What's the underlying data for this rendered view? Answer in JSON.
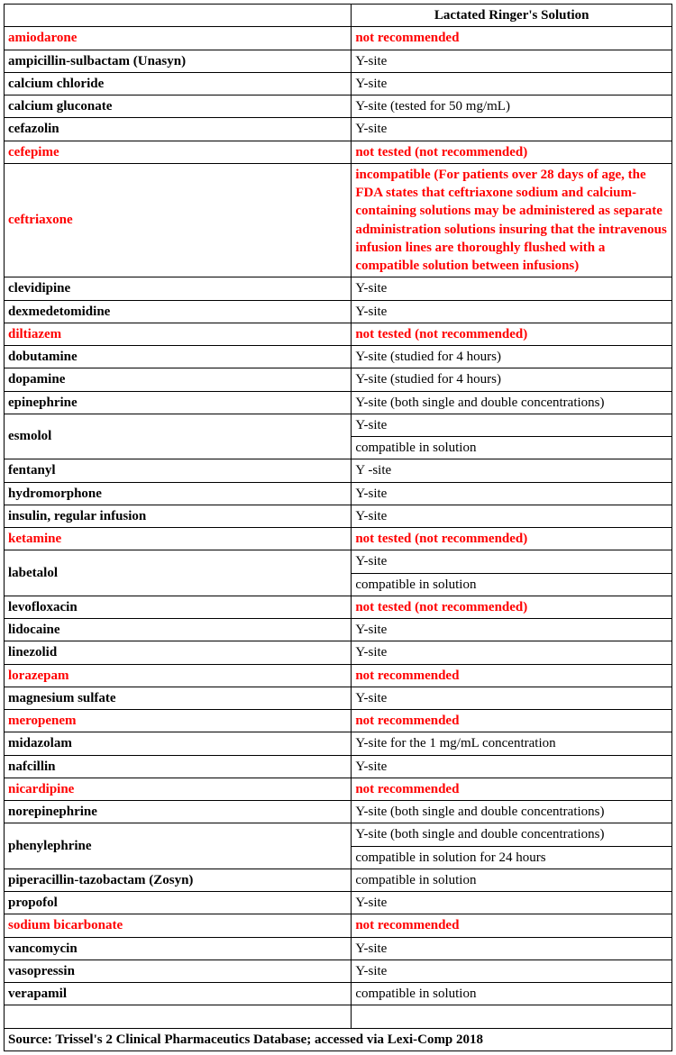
{
  "header": {
    "left": "",
    "right": "Lactated Ringer's Solution"
  },
  "rows": [
    {
      "drug": "amiodarone",
      "red": true,
      "notes": [
        "not recommended"
      ],
      "notesRed": [
        true
      ]
    },
    {
      "drug": "ampicillin-sulbactam (Unasyn)",
      "red": false,
      "notes": [
        "Y-site"
      ],
      "notesRed": [
        false
      ]
    },
    {
      "drug": "calcium chloride",
      "red": false,
      "notes": [
        "Y-site"
      ],
      "notesRed": [
        false
      ]
    },
    {
      "drug": "calcium gluconate",
      "red": false,
      "notes": [
        "Y-site (tested for 50 mg/mL)"
      ],
      "notesRed": [
        false
      ]
    },
    {
      "drug": "cefazolin",
      "red": false,
      "notes": [
        "Y-site"
      ],
      "notesRed": [
        false
      ]
    },
    {
      "drug": "cefepime",
      "red": true,
      "notes": [
        "not tested (not recommended)"
      ],
      "notesRed": [
        true
      ]
    },
    {
      "drug": "ceftriaxone",
      "red": true,
      "notes": [
        "incompatible (For patients over 28 days of age, the FDA states that ceftriaxone sodium and calcium-containing solutions may be administered as separate administration solutions insuring that the intravenous infusion lines are thoroughly flushed with a compatible solution between infusions)"
      ],
      "notesRed": [
        true
      ]
    },
    {
      "drug": "clevidipine",
      "red": false,
      "notes": [
        "Y-site"
      ],
      "notesRed": [
        false
      ]
    },
    {
      "drug": "dexmedetomidine",
      "red": false,
      "notes": [
        "Y-site"
      ],
      "notesRed": [
        false
      ]
    },
    {
      "drug": "diltiazem",
      "red": true,
      "notes": [
        "not tested (not recommended)"
      ],
      "notesRed": [
        true
      ]
    },
    {
      "drug": "dobutamine",
      "red": false,
      "notes": [
        "Y-site (studied for 4 hours)"
      ],
      "notesRed": [
        false
      ]
    },
    {
      "drug": "dopamine",
      "red": false,
      "notes": [
        "Y-site (studied for 4 hours)"
      ],
      "notesRed": [
        false
      ]
    },
    {
      "drug": "epinephrine",
      "red": false,
      "notes": [
        "Y-site (both single and double concentrations)"
      ],
      "notesRed": [
        false
      ]
    },
    {
      "drug": "esmolol",
      "red": false,
      "notes": [
        "Y-site",
        "compatible in solution"
      ],
      "notesRed": [
        false,
        false
      ]
    },
    {
      "drug": "fentanyl",
      "red": false,
      "notes": [
        "Y -site"
      ],
      "notesRed": [
        false
      ]
    },
    {
      "drug": "hydromorphone",
      "red": false,
      "notes": [
        "Y-site"
      ],
      "notesRed": [
        false
      ]
    },
    {
      "drug": "insulin, regular infusion",
      "red": false,
      "notes": [
        "Y-site"
      ],
      "notesRed": [
        false
      ]
    },
    {
      "drug": "ketamine",
      "red": true,
      "notes": [
        "not tested (not recommended)"
      ],
      "notesRed": [
        true
      ]
    },
    {
      "drug": "labetalol",
      "red": false,
      "notes": [
        "Y-site",
        "compatible in solution"
      ],
      "notesRed": [
        false,
        false
      ]
    },
    {
      "drug": "levofloxacin",
      "red": false,
      "notes": [
        "not tested (not recommended)"
      ],
      "notesRed": [
        true
      ]
    },
    {
      "drug": "lidocaine",
      "red": false,
      "notes": [
        "Y-site"
      ],
      "notesRed": [
        false
      ]
    },
    {
      "drug": "linezolid",
      "red": false,
      "notes": [
        "Y-site"
      ],
      "notesRed": [
        false
      ]
    },
    {
      "drug": "lorazepam",
      "red": true,
      "notes": [
        "not recommended"
      ],
      "notesRed": [
        true
      ]
    },
    {
      "drug": "magnesium sulfate",
      "red": false,
      "notes": [
        "Y-site"
      ],
      "notesRed": [
        false
      ]
    },
    {
      "drug": "meropenem",
      "red": true,
      "notes": [
        "not recommended"
      ],
      "notesRed": [
        true
      ]
    },
    {
      "drug": "midazolam",
      "red": false,
      "notes": [
        "Y-site for the 1 mg/mL concentration"
      ],
      "notesRed": [
        false
      ]
    },
    {
      "drug": "nafcillin",
      "red": false,
      "notes": [
        "Y-site"
      ],
      "notesRed": [
        false
      ]
    },
    {
      "drug": "nicardipine",
      "red": true,
      "notes": [
        "not recommended"
      ],
      "notesRed": [
        true
      ]
    },
    {
      "drug": "norepinephrine",
      "red": false,
      "notes": [
        "Y-site (both single and double concentrations)"
      ],
      "notesRed": [
        false
      ]
    },
    {
      "drug": "phenylephrine",
      "red": false,
      "notes": [
        "Y-site (both single and double concentrations)",
        "compatible in solution for 24 hours"
      ],
      "notesRed": [
        false,
        false
      ]
    },
    {
      "drug": "piperacillin-tazobactam (Zosyn)",
      "red": false,
      "notes": [
        "compatible in solution"
      ],
      "notesRed": [
        false
      ]
    },
    {
      "drug": "propofol",
      "red": false,
      "notes": [
        "Y-site"
      ],
      "notesRed": [
        false
      ]
    },
    {
      "drug": "sodium bicarbonate",
      "red": true,
      "notes": [
        "not recommended"
      ],
      "notesRed": [
        true
      ]
    },
    {
      "drug": "vancomycin",
      "red": false,
      "notes": [
        "Y-site"
      ],
      "notesRed": [
        false
      ]
    },
    {
      "drug": "vasopressin",
      "red": false,
      "notes": [
        "Y-site"
      ],
      "notesRed": [
        false
      ]
    },
    {
      "drug": "verapamil",
      "red": false,
      "notes": [
        "compatible in solution"
      ],
      "notesRed": [
        false
      ]
    }
  ],
  "source": "Source: Trissel's 2 Clinical Pharmaceutics Database; accessed via Lexi-Comp 2018"
}
